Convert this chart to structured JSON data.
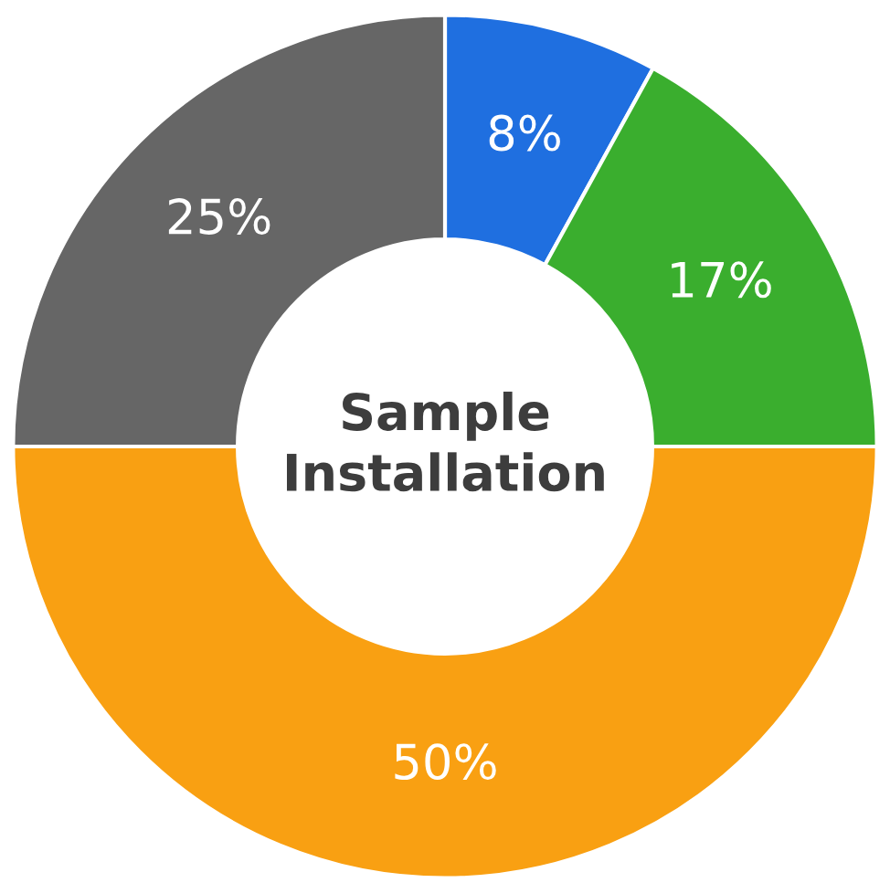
{
  "chart_data": {
    "type": "donut",
    "title": "Sample\nInstallation",
    "categories": [
      null,
      null,
      null,
      null
    ],
    "values": [
      8,
      17,
      50,
      25
    ],
    "colors": [
      "#1f6fe0",
      "#3aae2e",
      "#f9a012",
      "#666666"
    ],
    "value_labels": [
      "8%",
      "17%",
      "50%",
      "25%"
    ],
    "legend": false
  }
}
